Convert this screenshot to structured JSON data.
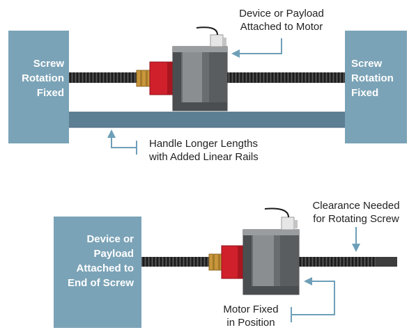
{
  "top": {
    "left_block": [
      "Screw",
      "Rotation",
      "Fixed"
    ],
    "right_block": [
      "Screw",
      "Rotation",
      "Fixed"
    ],
    "payload_callout": [
      "Device or Payload",
      "Attached to Motor"
    ],
    "rail_callout": [
      "Handle Longer Lengths",
      "with Added Linear Rails"
    ]
  },
  "bottom": {
    "block": [
      "Device or",
      "Payload",
      "Attached to",
      "End of Screw"
    ],
    "clearance_callout": [
      "Clearance Needed",
      "for Rotating Screw"
    ],
    "motor_callout": [
      "Motor Fixed",
      "in Position"
    ]
  },
  "colors": {
    "block": "#7ba3b7",
    "block_edge": "#5e8aa0",
    "rail": "#5d7f93",
    "motor_dark": "#4b4e50",
    "motor_mid": "#6a6d70",
    "motor_light": "#8b8e90",
    "nut_red": "#d0202c",
    "brass": "#c8963c",
    "screw": "#2f2f2f",
    "arrow": "#6e9fb8"
  }
}
